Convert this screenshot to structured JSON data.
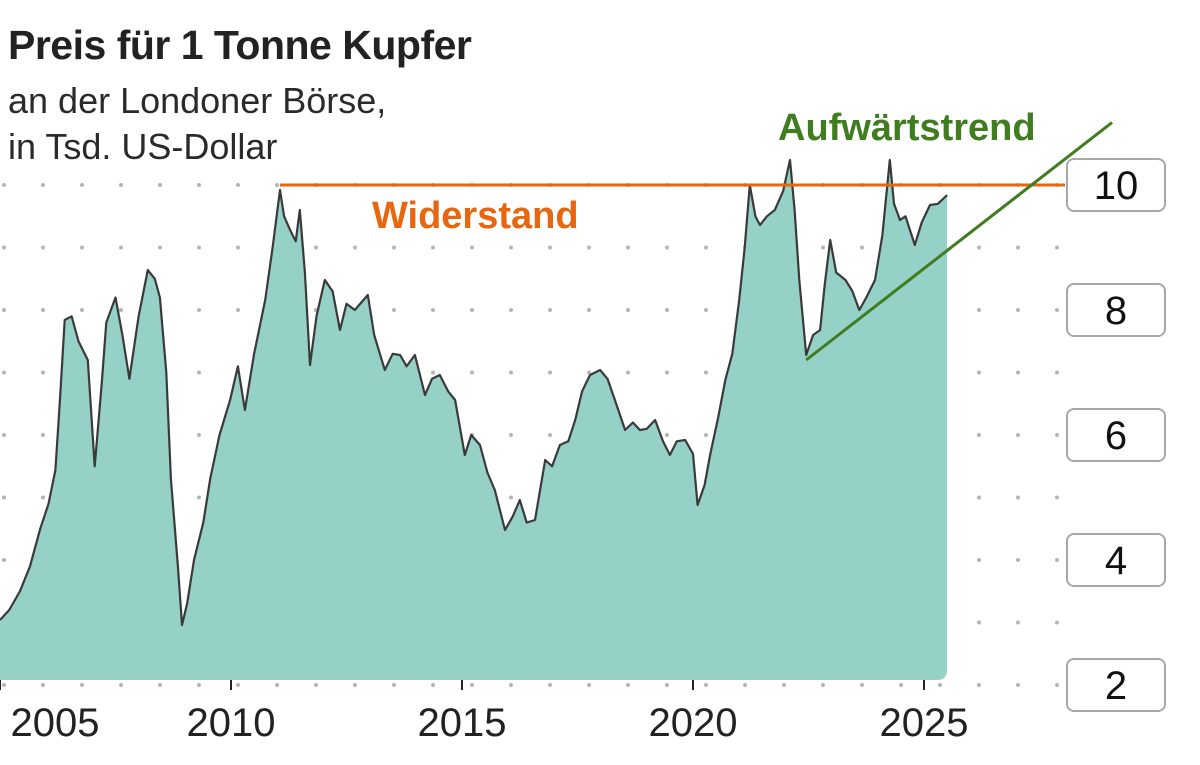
{
  "chart_data": {
    "type": "area",
    "title": "Preis für 1 Tonne Kupfer",
    "subtitle_lines": [
      "an der Londoner Börse,",
      "in Tsd. US-Dollar"
    ],
    "xlabel": "",
    "ylabel": "",
    "xlim": [
      2005,
      2029.2
    ],
    "ylim": [
      2,
      10.9
    ],
    "x_ticks": [
      2005,
      2010,
      2015,
      2020,
      2025
    ],
    "y_ticks": [
      2,
      4,
      6,
      8,
      10
    ],
    "grid": "dotted horizontal",
    "colors": {
      "fill": "#96d1c8",
      "line": "#3a3a3a",
      "resistance": "#e8660f",
      "trend": "#3f7d20"
    },
    "series": [
      {
        "x": [
          2005.0,
          2005.2,
          2005.43,
          2005.65,
          2005.87,
          2006.05,
          2006.2,
          2006.3,
          2006.4,
          2006.55,
          2006.7,
          2006.9,
          2007.05,
          2007.2,
          2007.3,
          2007.5,
          2007.65,
          2007.8,
          2008.0,
          2008.2,
          2008.35,
          2008.46,
          2008.6,
          2008.7,
          2008.85,
          2008.94,
          2009.05,
          2009.2,
          2009.4,
          2009.55,
          2009.75,
          2009.98,
          2010.15,
          2010.3,
          2010.5,
          2010.74,
          2010.9,
          2011.06,
          2011.15,
          2011.28,
          2011.4,
          2011.49,
          2011.6,
          2011.71,
          2011.85,
          2012.03,
          2012.2,
          2012.36,
          2012.5,
          2012.68,
          2012.96,
          2013.1,
          2013.33,
          2013.5,
          2013.66,
          2013.8,
          2013.98,
          2014.2,
          2014.35,
          2014.52,
          2014.7,
          2014.85,
          2015.06,
          2015.2,
          2015.39,
          2015.55,
          2015.71,
          2015.93,
          2016.1,
          2016.25,
          2016.4,
          2016.58,
          2016.8,
          2016.95,
          2017.12,
          2017.3,
          2017.45,
          2017.6,
          2017.77,
          2017.99,
          2018.15,
          2018.31,
          2018.53,
          2018.7,
          2018.85,
          2019.0,
          2019.18,
          2019.35,
          2019.5,
          2019.65,
          2019.83,
          2020.0,
          2020.1,
          2020.25,
          2020.37,
          2020.55,
          2020.7,
          2020.85,
          2021.0,
          2021.12,
          2021.23,
          2021.35,
          2021.45,
          2021.6,
          2021.77,
          2021.95,
          2022.1,
          2022.2,
          2022.3,
          2022.45,
          2022.6,
          2022.75,
          2022.85,
          2022.97,
          2023.1,
          2023.3,
          2023.45,
          2023.6,
          2023.75,
          2023.94,
          2024.1,
          2024.26,
          2024.35,
          2024.48,
          2024.6,
          2024.8,
          2024.95,
          2025.13,
          2025.3,
          2025.5
        ],
        "y": [
          3.04,
          3.2,
          3.5,
          3.9,
          4.5,
          4.9,
          5.44,
          6.6,
          7.84,
          7.9,
          7.5,
          7.2,
          5.5,
          6.8,
          7.8,
          8.2,
          7.6,
          6.9,
          7.9,
          8.64,
          8.5,
          8.2,
          7.0,
          5.3,
          3.9,
          2.96,
          3.3,
          4.0,
          4.6,
          5.3,
          6.0,
          6.56,
          7.1,
          6.4,
          7.3,
          8.16,
          9.0,
          9.92,
          9.5,
          9.28,
          9.1,
          9.6,
          8.6,
          7.12,
          7.9,
          8.48,
          8.3,
          7.68,
          8.1,
          8.0,
          8.24,
          7.6,
          7.04,
          7.3,
          7.28,
          7.1,
          7.28,
          6.64,
          6.9,
          6.96,
          6.7,
          6.56,
          5.68,
          6.0,
          5.84,
          5.4,
          5.12,
          4.48,
          4.7,
          4.96,
          4.6,
          4.64,
          5.6,
          5.5,
          5.84,
          5.9,
          6.24,
          6.7,
          6.96,
          7.04,
          6.9,
          6.56,
          6.08,
          6.2,
          6.08,
          6.1,
          6.24,
          5.9,
          5.68,
          5.9,
          5.92,
          5.7,
          4.88,
          5.2,
          5.68,
          6.3,
          6.88,
          7.3,
          8.16,
          9.0,
          10.0,
          9.5,
          9.36,
          9.5,
          9.6,
          9.9,
          10.4,
          9.6,
          8.48,
          7.28,
          7.6,
          7.68,
          8.4,
          9.12,
          8.6,
          8.48,
          8.3,
          8.0,
          8.2,
          8.48,
          9.2,
          10.4,
          9.7,
          9.44,
          9.5,
          9.04,
          9.4,
          9.68,
          9.7,
          9.84
        ]
      }
    ],
    "annotations": [
      {
        "label": "Widerstand",
        "type": "horizontal line",
        "y": 10,
        "x_from": 2011.06,
        "x_to": 2028.0
      },
      {
        "label": "Aufwärtstrend",
        "type": "trend line",
        "from": [
          2022.45,
          7.2
        ],
        "to": [
          2029.07,
          11.0
        ]
      }
    ]
  }
}
